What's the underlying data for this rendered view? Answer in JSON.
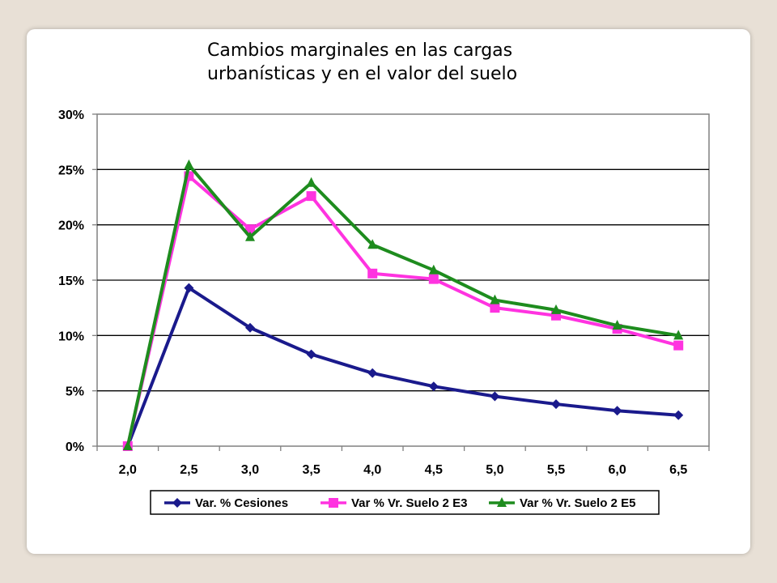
{
  "title_lines": [
    "Cambios marginales en las cargas",
    "urbanísticas y en el valor del suelo"
  ],
  "chart_data": {
    "type": "line",
    "title": "Cambios marginales en las cargas urbanísticas y en el valor del suelo",
    "xlabel": "",
    "ylabel": "",
    "categories": [
      "2,0",
      "2,5",
      "3,0",
      "3,5",
      "4,0",
      "4,5",
      "5,0",
      "5,5",
      "6,0",
      "6,5"
    ],
    "ylim": [
      0,
      30
    ],
    "yticks": [
      "0%",
      "5%",
      "10%",
      "15%",
      "20%",
      "25%",
      "30%"
    ],
    "grid": true,
    "legend_position": "bottom",
    "series": [
      {
        "name": "Var. % Cesiones",
        "color": "#1a1a8c",
        "marker": "diamond",
        "values": [
          0,
          14.3,
          10.7,
          8.3,
          6.6,
          5.4,
          4.5,
          3.8,
          3.2,
          2.8
        ]
      },
      {
        "name": "Var % Vr. Suelo 2 E3",
        "color": "#ff33e0",
        "marker": "square",
        "values": [
          0,
          24.4,
          19.6,
          22.6,
          15.6,
          15.1,
          12.5,
          11.8,
          10.6,
          9.1
        ]
      },
      {
        "name": "Var % Vr. Suelo 2 E5",
        "color": "#1e8c1e",
        "marker": "triangle",
        "values": [
          0,
          25.4,
          18.9,
          23.8,
          18.2,
          15.9,
          13.2,
          12.3,
          10.9,
          10.0
        ]
      }
    ]
  }
}
